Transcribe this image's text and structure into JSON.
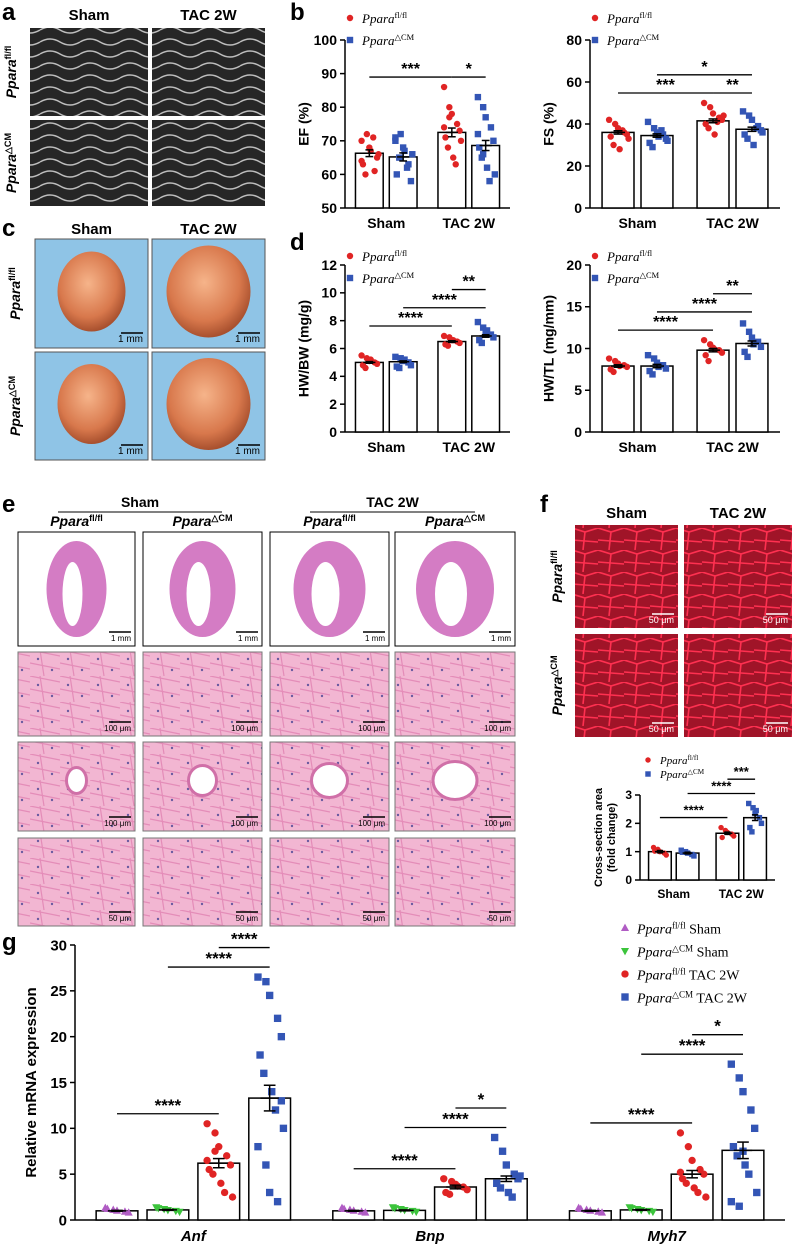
{
  "panels": {
    "a": {
      "label": "a",
      "columns": [
        "Sham",
        "TAC 2W"
      ],
      "rows": [
        [
          "Ppara",
          "fl/fl"
        ],
        [
          "Ppara",
          "△CM"
        ]
      ]
    },
    "b": {
      "label": "b"
    },
    "c": {
      "label": "c",
      "columns": [
        "Sham",
        "TAC 2W"
      ],
      "rows": [
        [
          "Ppara",
          "fl/fl"
        ],
        [
          "Ppara",
          "△CM"
        ]
      ],
      "scale": "1 mm"
    },
    "d": {
      "label": "d"
    },
    "e": {
      "label": "e",
      "groups": [
        "Sham",
        "TAC 2W"
      ],
      "columns": [
        [
          "Ppara",
          "fl/fl"
        ],
        [
          "Ppara",
          "△CM"
        ],
        [
          "Ppara",
          "fl/fl"
        ],
        [
          "Ppara",
          "△CM"
        ]
      ],
      "scales": [
        "1 mm",
        "100 μm",
        "100 μm",
        "50 μm"
      ]
    },
    "f": {
      "label": "f",
      "columns": [
        "Sham",
        "TAC 2W"
      ],
      "rows": [
        [
          "Ppara",
          "fl/fl"
        ],
        [
          "Ppara",
          "△CM"
        ]
      ],
      "scale": "50 μm"
    },
    "g": {
      "label": "g"
    }
  },
  "chart_data": [
    {
      "type": "bar",
      "ylabel": "EF (%)",
      "categories": [
        "Sham",
        "TAC 2W"
      ],
      "ylim": [
        50,
        100
      ],
      "yticks": [
        50,
        60,
        70,
        80,
        90,
        100
      ],
      "series": [
        {
          "name": [
            "Ppara",
            "fl/fl"
          ],
          "color": "#e02424",
          "marker": "circle",
          "values": [
            66.3,
            72.5
          ],
          "errors": [
            1.0,
            1.3
          ],
          "points": [
            [
              70,
              72,
              68,
              61,
              65,
              63,
              60,
              67,
              71,
              66,
              64
            ],
            [
              86,
              80,
              78,
              75,
              73,
              71,
              68,
              65,
              63,
              70,
              74,
              77
            ]
          ]
        },
        {
          "name": [
            "Ppara",
            "△CM"
          ],
          "color": "#3355b5",
          "marker": "square",
          "values": [
            65.2,
            68.6
          ],
          "errors": [
            1.2,
            1.5
          ],
          "points": [
            [
              71,
              72,
              68,
              63,
              58,
              60,
              65,
              67,
              62,
              66,
              70
            ],
            [
              83,
              80,
              77,
              74,
              70,
              68,
              65,
              62,
              58,
              60,
              72,
              66
            ]
          ]
        }
      ],
      "annotations": [
        {
          "text": "***",
          "from": 0,
          "to": 2
        },
        {
          "text": "*",
          "from": 2,
          "to": 3
        }
      ]
    },
    {
      "type": "bar",
      "ylabel": "FS (%)",
      "categories": [
        "Sham",
        "TAC 2W"
      ],
      "ylim": [
        0,
        80
      ],
      "yticks": [
        0,
        20,
        40,
        60,
        80
      ],
      "series": [
        {
          "name": [
            "Ppara",
            "fl/fl"
          ],
          "color": "#e02424",
          "marker": "circle",
          "values": [
            36.0,
            41.5
          ],
          "errors": [
            0.8,
            0.9
          ],
          "points": [
            [
              42,
              40,
              38,
              36,
              35,
              34,
              30,
              28,
              37,
              33
            ],
            [
              50,
              48,
              45,
              43,
              42,
              40,
              38,
              35,
              41,
              44
            ]
          ]
        },
        {
          "name": [
            "Ppara",
            "△CM"
          ],
          "color": "#3355b5",
          "marker": "square",
          "values": [
            34.5,
            37.5
          ],
          "errors": [
            0.8,
            1.0
          ],
          "points": [
            [
              41,
              38,
              36,
              35,
              33,
              31,
              29,
              34,
              37,
              32
            ],
            [
              46,
              44,
              42,
              39,
              37,
              35,
              33,
              30,
              38,
              36
            ]
          ]
        }
      ],
      "annotations": [
        {
          "text": "***",
          "from": 0,
          "to": 2
        },
        {
          "text": "**",
          "from": 2,
          "to": 3
        },
        {
          "text": "*",
          "from": 1,
          "to": 3
        }
      ]
    },
    {
      "type": "bar",
      "ylabel": "HW/BW (mg/g)",
      "categories": [
        "Sham",
        "TAC 2W"
      ],
      "ylim": [
        0,
        12
      ],
      "yticks": [
        0,
        2,
        4,
        6,
        8,
        10,
        12
      ],
      "series": [
        {
          "name": [
            "Ppara",
            "fl/fl"
          ],
          "color": "#e02424",
          "marker": "circle",
          "values": [
            5.0,
            6.5
          ],
          "errors": [
            0.06,
            0.06
          ],
          "points": [
            [
              5.5,
              5.3,
              5.1,
              5.0,
              4.9,
              4.8,
              4.6,
              5.2
            ],
            [
              6.9,
              6.8,
              6.6,
              6.5,
              6.4,
              6.3,
              6.2,
              6.6
            ]
          ]
        },
        {
          "name": [
            "Ppara",
            "△CM"
          ],
          "color": "#3355b5",
          "marker": "square",
          "values": [
            5.05,
            6.9
          ],
          "errors": [
            0.06,
            0.09
          ],
          "points": [
            [
              5.4,
              5.3,
              5.1,
              5.0,
              4.8,
              4.7,
              4.6,
              5.2
            ],
            [
              7.9,
              7.5,
              7.2,
              7.0,
              6.8,
              6.6,
              6.4,
              7.3
            ]
          ]
        }
      ],
      "annotations": [
        {
          "text": "****",
          "from": 0,
          "to": 2
        },
        {
          "text": "****",
          "from": 1,
          "to": 3
        },
        {
          "text": "**",
          "from": 2,
          "to": 3
        }
      ]
    },
    {
      "type": "bar",
      "ylabel": "HW/TL (mg/mm)",
      "categories": [
        "Sham",
        "TAC 2W"
      ],
      "ylim": [
        0,
        20
      ],
      "yticks": [
        0,
        5,
        10,
        15,
        20
      ],
      "series": [
        {
          "name": [
            "Ppara",
            "fl/fl"
          ],
          "color": "#e02424",
          "marker": "circle",
          "values": [
            7.9,
            9.8
          ],
          "errors": [
            0.15,
            0.2
          ],
          "points": [
            [
              8.8,
              8.5,
              8.2,
              8.0,
              7.8,
              7.5,
              7.2,
              7.9
            ],
            [
              11.0,
              10.5,
              10.1,
              9.8,
              9.5,
              9.2,
              8.5,
              9.9
            ]
          ]
        },
        {
          "name": [
            "Ppara",
            "△CM"
          ],
          "color": "#3355b5",
          "marker": "square",
          "values": [
            7.9,
            10.6
          ],
          "errors": [
            0.2,
            0.3
          ],
          "points": [
            [
              9.2,
              8.8,
              8.3,
              8.0,
              7.6,
              7.3,
              6.9,
              7.8
            ],
            [
              13.0,
              12.0,
              11.3,
              10.8,
              10.2,
              9.6,
              9.0,
              10.5
            ]
          ]
        }
      ],
      "annotations": [
        {
          "text": "****",
          "from": 0,
          "to": 2
        },
        {
          "text": "****",
          "from": 1,
          "to": 3
        },
        {
          "text": "**",
          "from": 2,
          "to": 3
        }
      ]
    },
    {
      "type": "bar",
      "ylabel": [
        "Cross-section area",
        "(fold change)"
      ],
      "categories": [
        "Sham",
        "TAC 2W"
      ],
      "ylim": [
        0,
        3
      ],
      "yticks": [
        0,
        1,
        2,
        3
      ],
      "series": [
        {
          "name": [
            "Ppara",
            "fl/fl"
          ],
          "color": "#e02424",
          "marker": "circle",
          "values": [
            1.0,
            1.65
          ],
          "errors": [
            0.04,
            0.04
          ],
          "points": [
            [
              1.15,
              1.08,
              1.0,
              0.95,
              0.88,
              1.02
            ],
            [
              1.85,
              1.75,
              1.68,
              1.62,
              1.55,
              1.5
            ]
          ]
        },
        {
          "name": [
            "Ppara",
            "△CM"
          ],
          "color": "#3355b5",
          "marker": "square",
          "values": [
            0.95,
            2.2
          ],
          "errors": [
            0.03,
            0.1
          ],
          "points": [
            [
              1.05,
              1.0,
              0.95,
              0.9,
              0.85,
              0.98
            ],
            [
              2.7,
              2.55,
              2.35,
              2.2,
              2.0,
              1.85,
              1.7,
              2.45
            ]
          ]
        }
      ],
      "annotations": [
        {
          "text": "****",
          "from": 0,
          "to": 2
        },
        {
          "text": "****",
          "from": 1,
          "to": 3
        },
        {
          "text": "***",
          "from": 2,
          "to": 3
        }
      ]
    },
    {
      "type": "bar",
      "ylabel": "Relative mRNA expression",
      "categories": [
        "Anf",
        "Bnp",
        "Myh7"
      ],
      "ylim": [
        0,
        30
      ],
      "yticks": [
        0,
        5,
        10,
        15,
        20,
        25,
        30
      ],
      "series": [
        {
          "name": [
            "Ppara",
            "fl/fl",
            " Sham"
          ],
          "color": "#b05cc4",
          "marker": "triangle-up",
          "values": [
            1.0,
            1.0,
            1.0
          ],
          "errors": [
            0.05,
            0.05,
            0.05
          ],
          "points": [
            [
              1.3,
              1.1,
              1.0,
              0.9,
              0.8,
              1.2
            ],
            [
              1.3,
              1.1,
              1.0,
              0.9,
              0.8,
              1.2
            ],
            [
              1.3,
              1.1,
              1.0,
              0.9,
              0.8,
              1.2
            ]
          ]
        },
        {
          "name": [
            "Ppara",
            "△CM",
            " Sham"
          ],
          "color": "#3cc43c",
          "marker": "triangle-down",
          "values": [
            1.1,
            1.05,
            1.1
          ],
          "errors": [
            0.05,
            0.05,
            0.05
          ],
          "points": [
            [
              1.4,
              1.2,
              1.1,
              1.0,
              0.9,
              1.3
            ],
            [
              1.4,
              1.2,
              1.1,
              1.0,
              0.9,
              1.3
            ],
            [
              1.4,
              1.2,
              1.1,
              1.0,
              0.9,
              1.3
            ]
          ]
        },
        {
          "name": [
            "Ppara",
            "fl/fl",
            " TAC 2W"
          ],
          "color": "#e02424",
          "marker": "circle",
          "values": [
            6.2,
            3.6,
            5.0
          ],
          "errors": [
            0.5,
            0.2,
            0.4
          ],
          "points": [
            [
              10.5,
              9.5,
              8,
              7,
              6,
              5.5,
              5,
              4,
              3,
              2.5,
              6.5,
              7.5
            ],
            [
              4.5,
              4.2,
              3.9,
              3.6,
              3.3,
              3.0,
              2.8,
              3.7
            ],
            [
              9.5,
              8,
              6.5,
              5.5,
              5,
              4.5,
              4,
              3.5,
              3,
              2.5,
              5.2
            ]
          ]
        },
        {
          "name": [
            "Ppara",
            "△CM",
            " TAC 2W"
          ],
          "color": "#3355b5",
          "marker": "square",
          "values": [
            13.3,
            4.5,
            7.6
          ],
          "errors": [
            1.4,
            0.3,
            0.9
          ],
          "points": [
            [
              26.5,
              26,
              24.5,
              22,
              20,
              18,
              16,
              14,
              12,
              10,
              8,
              6,
              3,
              2,
              13
            ],
            [
              9,
              7.5,
              6,
              5,
              4.5,
              4,
              3.5,
              3,
              2.5,
              4.8
            ],
            [
              17,
              15.5,
              14,
              12,
              10,
              8,
              7,
              6,
              5,
              3,
              2,
              1.5,
              7.5
            ]
          ]
        }
      ],
      "annotations": [
        {
          "text": "****",
          "from": 0,
          "to": 2
        },
        {
          "text": "****",
          "from": 1,
          "to": 3
        },
        {
          "text": "****",
          "from": 2,
          "to": 3
        },
        {
          "text": "****",
          "from": 4,
          "to": 6
        },
        {
          "text": "****",
          "from": 5,
          "to": 7
        },
        {
          "text": "*",
          "from": 6,
          "to": 7
        },
        {
          "text": "****",
          "from": 8,
          "to": 10
        },
        {
          "text": "****",
          "from": 9,
          "to": 11
        },
        {
          "text": "*",
          "from": 10,
          "to": 11
        }
      ]
    }
  ]
}
